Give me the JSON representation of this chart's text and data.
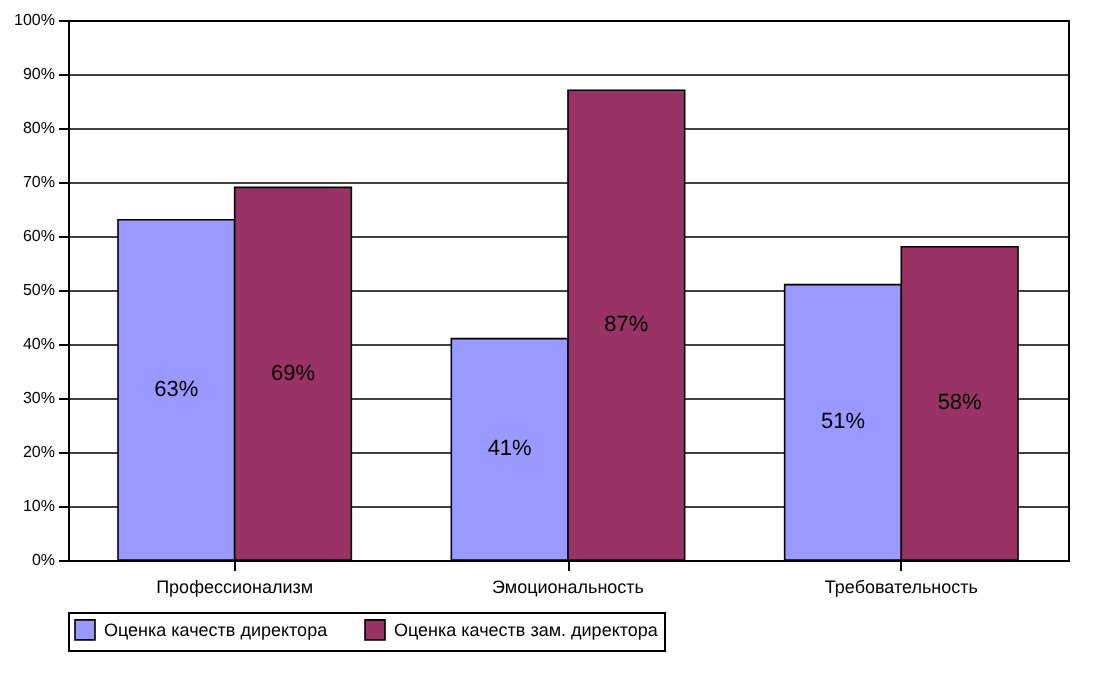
{
  "chart_data": {
    "type": "bar",
    "categories": [
      "Профессионализм",
      "Эмоциональность",
      "Требовательность"
    ],
    "series": [
      {
        "name": "Оценка качеств директора",
        "color": "#9999ff",
        "values": [
          63,
          41,
          51
        ],
        "value_labels": [
          "63%",
          "41%",
          "51%"
        ]
      },
      {
        "name": "Оценка качеств зам. директора",
        "color": "#993366",
        "values": [
          69,
          87,
          58
        ],
        "value_labels": [
          "69%",
          "87%",
          "58%"
        ]
      }
    ],
    "ylim": [
      0,
      100
    ],
    "yticks": [
      {
        "value": 0,
        "label": "0%"
      },
      {
        "value": 10,
        "label": "10%"
      },
      {
        "value": 20,
        "label": "20%"
      },
      {
        "value": 30,
        "label": "30%"
      },
      {
        "value": 40,
        "label": "40%"
      },
      {
        "value": 50,
        "label": "50%"
      },
      {
        "value": 60,
        "label": "60%"
      },
      {
        "value": 70,
        "label": "70%"
      },
      {
        "value": 80,
        "label": "80%"
      },
      {
        "value": 90,
        "label": "90%"
      },
      {
        "value": 100,
        "label": "100%"
      }
    ],
    "grid": "y",
    "legend": "bottom"
  }
}
